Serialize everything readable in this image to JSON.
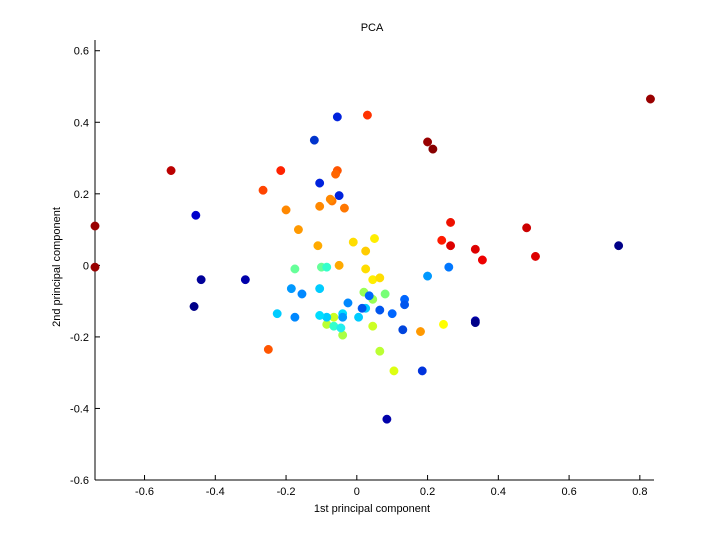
{
  "chart_data": {
    "type": "scatter",
    "title": "PCA",
    "xlabel": "1st principal component",
    "ylabel": "2nd principal component",
    "xlim": [
      -0.74,
      0.84
    ],
    "ylim": [
      -0.6,
      0.63
    ],
    "xticks": [
      "-0.6",
      "-0.4",
      "-0.2",
      "0",
      "0.2",
      "0.4",
      "0.6",
      "0.8"
    ],
    "yticks": [
      "-0.6",
      "-0.4",
      "-0.2",
      "0",
      "0.2",
      "0.4",
      "0.6"
    ],
    "grid": false,
    "legend": "none",
    "colormap": "jet",
    "points": [
      {
        "x": -0.74,
        "y": 0.11,
        "color": "#990000"
      },
      {
        "x": -0.74,
        "y": -0.005,
        "color": "#990000"
      },
      {
        "x": -0.525,
        "y": 0.265,
        "color": "#bb0000"
      },
      {
        "x": 0.2,
        "y": 0.345,
        "color": "#990000"
      },
      {
        "x": 0.215,
        "y": 0.325,
        "color": "#880000"
      },
      {
        "x": 0.83,
        "y": 0.465,
        "color": "#990000"
      },
      {
        "x": 0.48,
        "y": 0.105,
        "color": "#cc0000"
      },
      {
        "x": 0.505,
        "y": 0.025,
        "color": "#dd0000"
      },
      {
        "x": 0.335,
        "y": 0.045,
        "color": "#dd0000"
      },
      {
        "x": 0.355,
        "y": 0.015,
        "color": "#ee0000"
      },
      {
        "x": 0.265,
        "y": 0.12,
        "color": "#ee1100"
      },
      {
        "x": 0.265,
        "y": 0.055,
        "color": "#dd0000"
      },
      {
        "x": 0.24,
        "y": 0.07,
        "color": "#ff1a00"
      },
      {
        "x": 0.03,
        "y": 0.42,
        "color": "#ff3300"
      },
      {
        "x": -0.215,
        "y": 0.265,
        "color": "#ff2200"
      },
      {
        "x": -0.265,
        "y": 0.21,
        "color": "#ff4400"
      },
      {
        "x": -0.055,
        "y": 0.265,
        "color": "#ff5500"
      },
      {
        "x": -0.06,
        "y": 0.255,
        "color": "#ff6600"
      },
      {
        "x": -0.07,
        "y": 0.18,
        "color": "#ff7700"
      },
      {
        "x": -0.075,
        "y": 0.185,
        "color": "#ff8800"
      },
      {
        "x": -0.105,
        "y": 0.165,
        "color": "#ff8800"
      },
      {
        "x": -0.035,
        "y": 0.16,
        "color": "#ff7700"
      },
      {
        "x": -0.2,
        "y": 0.155,
        "color": "#ff8800"
      },
      {
        "x": -0.165,
        "y": 0.1,
        "color": "#ff9900"
      },
      {
        "x": -0.11,
        "y": 0.055,
        "color": "#ffaa00"
      },
      {
        "x": -0.05,
        "y": 0.0,
        "color": "#ffaa00"
      },
      {
        "x": -0.25,
        "y": -0.235,
        "color": "#ff5500"
      },
      {
        "x": 0.18,
        "y": -0.185,
        "color": "#ff9900"
      },
      {
        "x": -0.01,
        "y": 0.065,
        "color": "#ffdd00"
      },
      {
        "x": 0.025,
        "y": 0.04,
        "color": "#ffcc00"
      },
      {
        "x": 0.05,
        "y": 0.075,
        "color": "#ffee00"
      },
      {
        "x": 0.025,
        "y": -0.01,
        "color": "#ffdd00"
      },
      {
        "x": 0.045,
        "y": -0.04,
        "color": "#ffee00"
      },
      {
        "x": 0.065,
        "y": -0.035,
        "color": "#ffdd00"
      },
      {
        "x": 0.245,
        "y": -0.165,
        "color": "#ffff00"
      },
      {
        "x": 0.105,
        "y": -0.295,
        "color": "#ddff11"
      },
      {
        "x": 0.065,
        "y": -0.24,
        "color": "#bbff33"
      },
      {
        "x": 0.045,
        "y": -0.17,
        "color": "#ccff22"
      },
      {
        "x": -0.04,
        "y": -0.195,
        "color": "#aaff44"
      },
      {
        "x": -0.065,
        "y": -0.145,
        "color": "#ccff22"
      },
      {
        "x": -0.085,
        "y": -0.165,
        "color": "#bbff33"
      },
      {
        "x": 0.02,
        "y": -0.075,
        "color": "#99ff55"
      },
      {
        "x": 0.045,
        "y": -0.095,
        "color": "#99ff55"
      },
      {
        "x": 0.08,
        "y": -0.08,
        "color": "#77ff77"
      },
      {
        "x": -0.175,
        "y": -0.01,
        "color": "#66ff99"
      },
      {
        "x": -0.1,
        "y": -0.005,
        "color": "#66ff99"
      },
      {
        "x": -0.085,
        "y": -0.005,
        "color": "#33ffcc"
      },
      {
        "x": -0.065,
        "y": -0.17,
        "color": "#33ffcc"
      },
      {
        "x": -0.045,
        "y": -0.175,
        "color": "#22eeee"
      },
      {
        "x": -0.04,
        "y": -0.135,
        "color": "#00ddff"
      },
      {
        "x": 0.005,
        "y": -0.145,
        "color": "#00ccff"
      },
      {
        "x": -0.085,
        "y": -0.145,
        "color": "#00ccff"
      },
      {
        "x": -0.105,
        "y": -0.14,
        "color": "#00ddff"
      },
      {
        "x": -0.225,
        "y": -0.135,
        "color": "#00ccff"
      },
      {
        "x": -0.105,
        "y": -0.065,
        "color": "#00ccff"
      },
      {
        "x": 0.025,
        "y": -0.12,
        "color": "#00ccff"
      },
      {
        "x": -0.185,
        "y": -0.065,
        "color": "#0099ff"
      },
      {
        "x": -0.155,
        "y": -0.08,
        "color": "#0088ff"
      },
      {
        "x": -0.175,
        "y": -0.145,
        "color": "#0088ff"
      },
      {
        "x": -0.04,
        "y": -0.145,
        "color": "#0099ff"
      },
      {
        "x": -0.025,
        "y": -0.105,
        "color": "#0088ff"
      },
      {
        "x": 0.2,
        "y": -0.03,
        "color": "#0099ff"
      },
      {
        "x": 0.26,
        "y": -0.005,
        "color": "#0077ff"
      },
      {
        "x": 0.135,
        "y": -0.095,
        "color": "#0066ff"
      },
      {
        "x": 0.135,
        "y": -0.11,
        "color": "#0055ee"
      },
      {
        "x": 0.1,
        "y": -0.135,
        "color": "#0066ff"
      },
      {
        "x": 0.065,
        "y": -0.125,
        "color": "#0055ee"
      },
      {
        "x": 0.035,
        "y": -0.085,
        "color": "#0066ff"
      },
      {
        "x": 0.015,
        "y": -0.12,
        "color": "#0055ee"
      },
      {
        "x": 0.13,
        "y": -0.18,
        "color": "#0044dd"
      },
      {
        "x": 0.185,
        "y": -0.295,
        "color": "#0033dd"
      },
      {
        "x": -0.055,
        "y": 0.415,
        "color": "#0022dd"
      },
      {
        "x": -0.12,
        "y": 0.35,
        "color": "#0033cc"
      },
      {
        "x": -0.105,
        "y": 0.23,
        "color": "#0022dd"
      },
      {
        "x": -0.05,
        "y": 0.195,
        "color": "#0022dd"
      },
      {
        "x": -0.455,
        "y": 0.14,
        "color": "#0000cc"
      },
      {
        "x": -0.44,
        "y": -0.04,
        "color": "#000099"
      },
      {
        "x": -0.46,
        "y": -0.115,
        "color": "#000088"
      },
      {
        "x": -0.315,
        "y": -0.04,
        "color": "#0000aa"
      },
      {
        "x": 0.335,
        "y": -0.155,
        "color": "#0000aa"
      },
      {
        "x": 0.335,
        "y": -0.16,
        "color": "#000088"
      },
      {
        "x": 0.74,
        "y": 0.055,
        "color": "#000088"
      },
      {
        "x": 0.085,
        "y": -0.43,
        "color": "#0000aa"
      }
    ]
  }
}
